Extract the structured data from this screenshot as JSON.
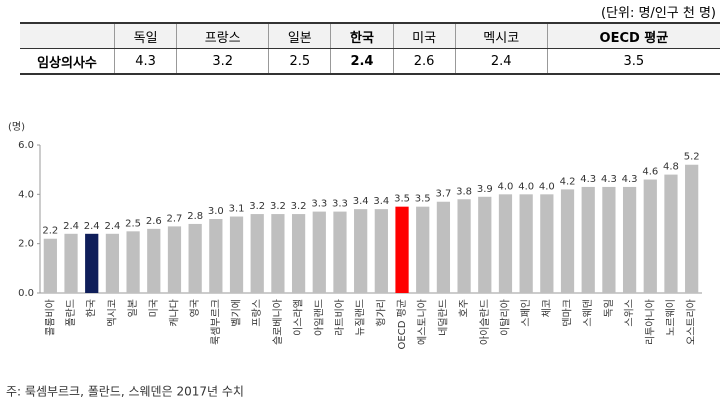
{
  "table": {
    "unit": "(단위: 명/인구 천 명)",
    "header": [
      "독일",
      "프랑스",
      "일본",
      "한국",
      "미국",
      "멕시코",
      "OECD 평균"
    ],
    "rows": [
      [
        "임상의사수",
        "4.3",
        "3.2",
        "2.5",
        "2.4",
        "2.6",
        "2.4",
        "3.5"
      ]
    ]
  },
  "chart_data": {
    "type": "bar",
    "y_label": "(명)",
    "categories": [
      "콜롬비아",
      "폴란드",
      "한국",
      "멕시코",
      "일본",
      "미국",
      "캐나다",
      "영국",
      "룩셈부르크",
      "벨기에",
      "프랑스",
      "슬로베니아",
      "이스라엘",
      "아일랜드",
      "라트비아",
      "뉴질랜드",
      "헝가리",
      "OECD 평균",
      "에스토니아",
      "네덜란드",
      "호주",
      "아이슬란드",
      "이탈리아",
      "스페인",
      "체코",
      "덴마크",
      "스웨덴",
      "독일",
      "스위스",
      "리투아니아",
      "노르웨이",
      "오스트리아"
    ],
    "values": [
      2.2,
      2.4,
      2.4,
      2.4,
      2.5,
      2.6,
      2.7,
      2.8,
      3.0,
      3.1,
      3.2,
      3.2,
      3.2,
      3.3,
      3.3,
      3.4,
      3.4,
      3.5,
      3.5,
      3.7,
      3.8,
      3.9,
      4.0,
      4.0,
      4.0,
      4.2,
      4.3,
      4.3,
      4.3,
      4.6,
      4.8,
      5.2
    ],
    "value_labels": [
      "2.2",
      "2.4",
      "2.4",
      "2.4",
      "2.5",
      "2.6",
      "2.7",
      "2.8",
      "3.0",
      "3.1",
      "3.2",
      "3.2",
      "3.2",
      "3.3",
      "3.3",
      "3.4",
      "3.4",
      "3.5",
      "3.5",
      "3.7",
      "3.8",
      "3.9",
      "4.0",
      "4.0",
      "4.0",
      "4.2",
      "4.3",
      "4.3",
      "4.3",
      "4.6",
      "4.8",
      "5.2"
    ],
    "colors": [
      "#bfbfbf",
      "#bfbfbf",
      "#0f1e5a",
      "#bfbfbf",
      "#bfbfbf",
      "#bfbfbf",
      "#bfbfbf",
      "#bfbfbf",
      "#bfbfbf",
      "#bfbfbf",
      "#bfbfbf",
      "#bfbfbf",
      "#bfbfbf",
      "#bfbfbf",
      "#bfbfbf",
      "#bfbfbf",
      "#bfbfbf",
      "#ff0000",
      "#bfbfbf",
      "#bfbfbf",
      "#bfbfbf",
      "#bfbfbf",
      "#bfbfbf",
      "#bfbfbf",
      "#bfbfbf",
      "#bfbfbf",
      "#bfbfbf",
      "#bfbfbf",
      "#bfbfbf",
      "#bfbfbf",
      "#bfbfbf",
      "#bfbfbf"
    ],
    "ylim": [
      0,
      6
    ],
    "yticks": [
      {
        "value": 0,
        "label": "0.0"
      },
      {
        "value": 2,
        "label": "2.0"
      },
      {
        "value": 4,
        "label": "4.0"
      },
      {
        "value": 6,
        "label": "6.0"
      }
    ],
    "note": "주: 룩셈부르크, 폴란드, 스웨덴은 2017년 수치"
  }
}
